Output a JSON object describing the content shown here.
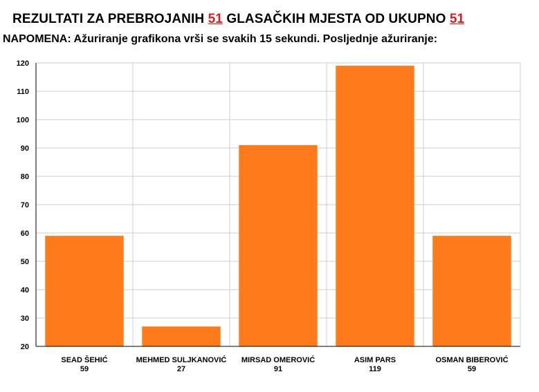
{
  "header": {
    "title_prefix": "REZULTATI ZA PREBROJANIH",
    "counted": "51",
    "title_middle": "GLASAČKIH MJESTA OD UKUPNO",
    "total": "51",
    "note": "NAPOMENA: Ažuriranje grafikona vrši se svakih 15 sekundi. Posljednje ažuriranje:"
  },
  "colors": {
    "bar": "#ff7a1a",
    "grid": "#cccccc",
    "axis": "#000000"
  },
  "chart_data": {
    "type": "bar",
    "categories": [
      "SEAD ŠEHIĆ",
      "MEHMED SULJKANOVIĆ",
      "MIRSAD OMEROVIĆ",
      "ASIM PARS",
      "OSMAN BIBEROVIĆ"
    ],
    "values": [
      59,
      27,
      91,
      119,
      59
    ],
    "value_labels": [
      "59",
      "27",
      "91",
      "119",
      "59"
    ],
    "ylim": [
      20,
      120
    ],
    "yticks": [
      20,
      30,
      40,
      50,
      60,
      70,
      80,
      90,
      100,
      110,
      120
    ],
    "grid": true
  }
}
